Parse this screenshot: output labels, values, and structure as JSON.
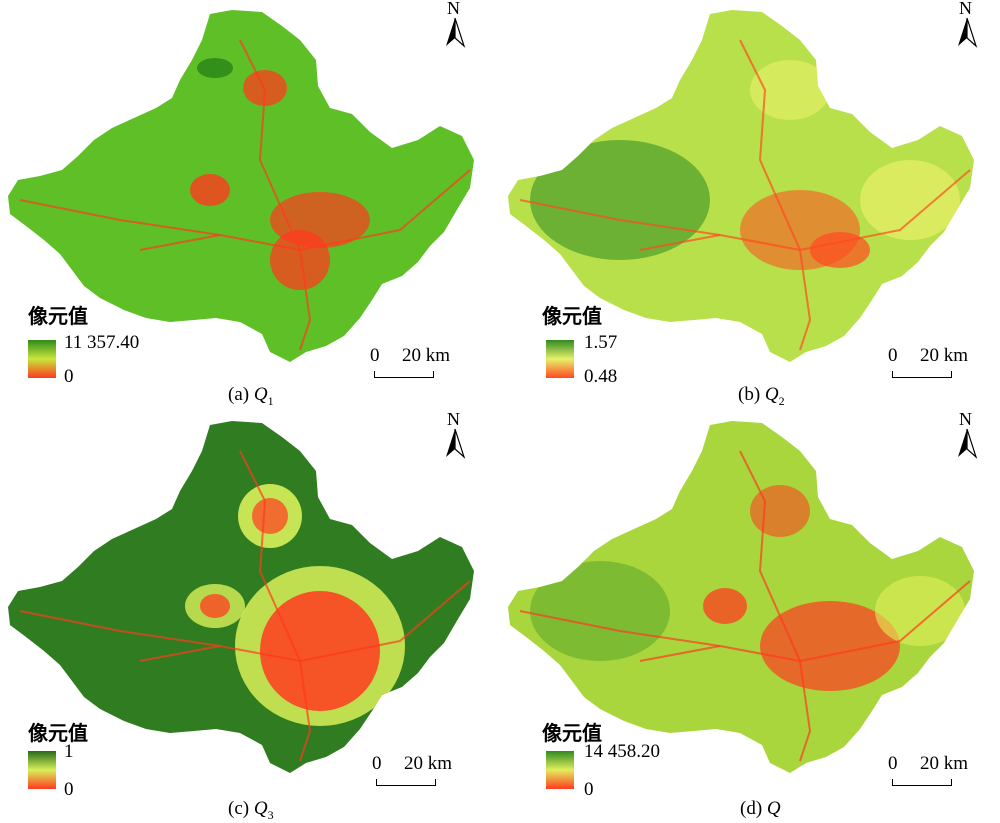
{
  "legend_title": "像元值",
  "north_label": "N",
  "scale": {
    "zero": "0",
    "distance": "20 km"
  },
  "panels": [
    {
      "id": "a",
      "caption_prefix": "(a) ",
      "caption_var": "Q",
      "caption_sub": "1",
      "legend_max": "11 357.40",
      "legend_min": "0",
      "colors": {
        "base": "#5fbf26",
        "high": "#2e8b1a",
        "low": "#ff3b1f",
        "mid": "#c8e63a"
      }
    },
    {
      "id": "b",
      "caption_prefix": "(b) ",
      "caption_var": "Q",
      "caption_sub": "2",
      "legend_max": "1.57",
      "legend_min": "0.48",
      "colors": {
        "base": "#b8e04a",
        "high": "#2f8a22",
        "low": "#ff4a1f",
        "mid": "#e8f06a"
      }
    },
    {
      "id": "c",
      "caption_prefix": "(c) ",
      "caption_var": "Q",
      "caption_sub": "3",
      "legend_max": "1",
      "legend_min": "0",
      "colors": {
        "base": "#2f7d20",
        "high": "#256b18",
        "low": "#ff3b1f",
        "mid": "#d8f05a"
      }
    },
    {
      "id": "d",
      "caption_prefix": "(d) ",
      "caption_var": "Q",
      "caption_sub": "",
      "legend_max": "14 458.20",
      "legend_min": "0",
      "colors": {
        "base": "#a8d63c",
        "high": "#2f8a22",
        "low": "#ff3b1f",
        "mid": "#e2ee5a"
      }
    }
  ]
}
